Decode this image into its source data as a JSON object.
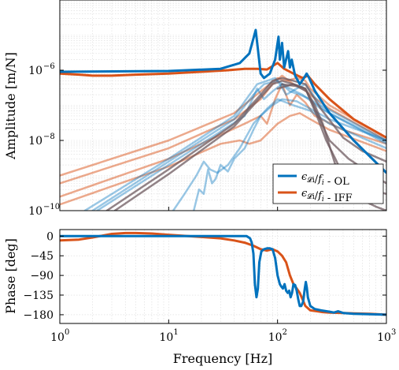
{
  "chart_data": [
    {
      "type": "line",
      "xscale": "log",
      "yscale": "log",
      "xlim": [
        1,
        1000
      ],
      "ylim": [
        1e-10,
        0.0001
      ],
      "ylabel": "Amplitude [m/N]",
      "xlabel": "",
      "yticks": [
        {
          "value": 1e-10,
          "label": "10"
        },
        {
          "value": 1e-08,
          "label": "10"
        },
        {
          "value": 1e-06,
          "label": "10"
        }
      ],
      "ytick_exponents": [
        "−10",
        "−8",
        "−6"
      ],
      "grid": true,
      "legend": {
        "placement": "bottom-right",
        "entries": [
          {
            "label": "ϵ",
            "sub": "𝓛i",
            "mid": "/",
            "f": "f",
            "fsub": "i",
            "suffix": " - OL",
            "color": "#0072BD"
          },
          {
            "label": "ϵ",
            "sub": "𝓛i",
            "mid": "/",
            "f": "f",
            "fsub": "i",
            "suffix": " - IFF",
            "color": "#D95319"
          }
        ]
      },
      "series": [
        {
          "color": "#0072BD",
          "width": 3,
          "opacity": 1,
          "x": [
            1,
            10,
            30,
            45,
            55,
            60,
            63,
            66,
            70,
            75,
            85,
            95,
            102,
            105,
            110,
            115,
            125,
            130,
            135,
            145,
            160,
            175,
            185,
            195,
            220,
            300,
            500,
            1000
          ],
          "y": [
            9e-07,
            9.5e-07,
            1.1e-06,
            1.6e-06,
            3e-06,
            8e-06,
            1.4e-05,
            4e-06,
            8e-07,
            6e-07,
            8e-07,
            2e-06,
            9e-06,
            2e-06,
            6e-06,
            1.2e-06,
            3.5e-06,
            1.2e-06,
            2e-06,
            7e-07,
            4e-07,
            6e-07,
            8e-07,
            6e-07,
            2.6e-07,
            6e-08,
            1e-08,
            1.2e-09
          ]
        },
        {
          "color": "#D95319",
          "width": 3,
          "opacity": 1,
          "x": [
            1,
            1.5,
            2,
            3,
            5,
            10,
            20,
            35,
            50,
            65,
            80,
            100,
            115,
            140,
            170,
            190,
            220,
            300,
            500,
            1000
          ],
          "y": [
            8e-07,
            7.5e-07,
            7e-07,
            7e-07,
            7.5e-07,
            8e-07,
            9e-07,
            1e-06,
            1.1e-06,
            1.1e-06,
            1.05e-06,
            1.6e-06,
            1.1e-06,
            8e-07,
            6e-07,
            7e-07,
            4e-07,
            1.5e-07,
            4e-08,
            1.2e-08
          ]
        },
        {
          "color": "#D95319",
          "width": 2.5,
          "opacity": 0.5,
          "x": [
            1,
            10,
            40,
            70,
            100,
            120,
            150,
            180,
            200,
            300,
            1000
          ],
          "y": [
            1e-09,
            1e-08,
            6e-08,
            2.5e-07,
            6e-07,
            5e-07,
            6e-07,
            5e-07,
            3e-07,
            1e-07,
            1.2e-08
          ]
        },
        {
          "color": "#D95319",
          "width": 2.5,
          "opacity": 0.5,
          "x": [
            1,
            10,
            40,
            70,
            90,
            110,
            140,
            170,
            200,
            300,
            1000
          ],
          "y": [
            6e-10,
            6e-09,
            4e-08,
            1.5e-07,
            4e-07,
            7e-07,
            4e-07,
            3e-07,
            2e-07,
            8e-08,
            1e-08
          ]
        },
        {
          "color": "#D95319",
          "width": 2.5,
          "opacity": 0.5,
          "x": [
            1,
            10,
            50,
            70,
            80,
            95,
            110,
            130,
            150,
            180,
            220,
            400,
            1000
          ],
          "y": [
            2.5e-10,
            3e-09,
            3e-08,
            5e-08,
            3e-08,
            1.5e-07,
            4e-07,
            1e-07,
            2e-07,
            1.2e-07,
            5e-08,
            2e-08,
            8e-09
          ]
        },
        {
          "color": "#D95319",
          "width": 2.5,
          "opacity": 0.5,
          "x": [
            1,
            10,
            30,
            45,
            55,
            70,
            100,
            130,
            160,
            200,
            300,
            1000
          ],
          "y": [
            1.5e-10,
            1.8e-09,
            8e-09,
            1e-08,
            8e-09,
            1e-08,
            3e-08,
            5e-08,
            6e-08,
            4e-08,
            2e-08,
            5e-09
          ]
        },
        {
          "color": "#0072BD",
          "width": 2.5,
          "opacity": 0.4,
          "x": [
            1.7,
            10,
            40,
            65,
            80,
            95,
            105,
            120,
            150,
            180,
            250,
            1000
          ],
          "y": [
            1e-10,
            3e-09,
            5e-08,
            4e-07,
            5e-07,
            6e-07,
            4e-07,
            2e-07,
            3e-07,
            4e-07,
            1e-07,
            1e-08
          ]
        },
        {
          "color": "#0072BD",
          "width": 2.5,
          "opacity": 0.4,
          "x": [
            2,
            10,
            40,
            60,
            75,
            100,
            130,
            170,
            250,
            1000
          ],
          "y": [
            1e-10,
            2.5e-09,
            4e-08,
            2e-07,
            4e-07,
            5e-07,
            3e-07,
            2e-07,
            8e-08,
            8e-09
          ]
        },
        {
          "color": "#0072BD",
          "width": 2.5,
          "opacity": 0.4,
          "x": [
            2.2,
            10,
            50,
            65,
            75,
            90,
            110,
            130,
            160,
            200,
            300,
            1000
          ],
          "y": [
            1e-10,
            2e-09,
            5e-08,
            3e-07,
            1.5e-07,
            2.5e-07,
            4e-07,
            2.5e-07,
            2e-07,
            1.5e-07,
            6e-08,
            9e-09
          ]
        },
        {
          "color": "#0072BD",
          "width": 2.5,
          "opacity": 0.4,
          "x": [
            17,
            19,
            21,
            23,
            25,
            27,
            30,
            35,
            40,
            50,
            60,
            70,
            90,
            110,
            150,
            200,
            300,
            1000
          ],
          "y": [
            1e-10,
            4e-10,
            3e-10,
            1.5e-09,
            6e-10,
            8e-10,
            2e-09,
            1.3e-09,
            3e-09,
            6e-09,
            2e-08,
            5e-08,
            1e-07,
            1.5e-07,
            1.3e-07,
            8e-08,
            4e-08,
            1e-08
          ]
        },
        {
          "color": "#0072BD",
          "width": 2.5,
          "opacity": 0.4,
          "x": [
            11,
            14,
            18,
            21,
            24,
            28,
            35,
            45,
            60,
            80,
            100,
            140,
            200,
            300,
            1000
          ],
          "y": [
            1e-10,
            3e-10,
            1e-09,
            2.5e-09,
            1.5e-09,
            1.2e-09,
            2e-09,
            6e-09,
            3e-08,
            8e-08,
            1.5e-07,
            1e-07,
            7e-08,
            3e-08,
            6e-09
          ]
        },
        {
          "color": "#6E5A5F",
          "width": 2.5,
          "opacity": 0.75,
          "x": [
            2.7,
            10,
            40,
            70,
            90,
            110,
            140,
            180,
            250,
            400,
            600,
            1000
          ],
          "y": [
            1e-10,
            1.5e-09,
            3e-08,
            2e-07,
            5e-07,
            6e-07,
            5e-07,
            4e-07,
            8e-08,
            1.2e-08,
            5e-09,
            2.5e-09
          ]
        },
        {
          "color": "#6E5A5F",
          "width": 2.5,
          "opacity": 0.75,
          "x": [
            3.2,
            10,
            40,
            70,
            90,
            110,
            140,
            180,
            230,
            300,
            450,
            700,
            1000
          ],
          "y": [
            1e-10,
            1.1e-09,
            2.5e-08,
            1.7e-07,
            4e-07,
            5e-07,
            4e-07,
            3e-07,
            6e-08,
            1e-08,
            3e-09,
            1.2e-09,
            6e-10
          ]
        },
        {
          "color": "#6E5A5F",
          "width": 2.5,
          "opacity": 0.75,
          "x": [
            100,
            140,
            180,
            220,
            260,
            300,
            340,
            380,
            420,
            500,
            700,
            1000
          ],
          "y": [
            3e-07,
            4e-07,
            3e-07,
            1e-07,
            3e-08,
            7e-09,
            2e-09,
            7e-10,
            4e-10,
            4.5e-10,
            4e-10,
            3e-10
          ]
        },
        {
          "color": "#6E5A5F",
          "width": 2.5,
          "opacity": 0.75,
          "x": [
            110,
            150,
            185,
            230,
            280,
            340,
            400,
            480,
            600,
            800,
            1000
          ],
          "y": [
            4e-07,
            3.5e-07,
            2.5e-07,
            5e-08,
            1e-08,
            3e-09,
            1e-09,
            4e-10,
            2e-10,
            1.3e-10,
            1e-10
          ]
        }
      ]
    },
    {
      "type": "line",
      "xscale": "log",
      "xlim": [
        1,
        1000
      ],
      "ylim": [
        -200,
        15
      ],
      "ylabel": "Phase [deg]",
      "xlabel": "Frequency [Hz]",
      "yticks": [
        0,
        -45,
        -90,
        -135,
        -180
      ],
      "ytick_labels": [
        "0",
        "−45",
        "−90",
        "−135",
        "−180"
      ],
      "xticks": [
        1,
        10,
        100,
        1000
      ],
      "xtick_labels": [
        "10",
        "10",
        "10",
        "10"
      ],
      "xtick_exponents": [
        "0",
        "1",
        "2",
        "3"
      ],
      "grid": true,
      "series": [
        {
          "color": "#0072BD",
          "width": 3,
          "opacity": 1,
          "x": [
            1,
            10,
            30,
            45,
            52,
            56,
            58,
            60,
            62,
            64,
            66,
            68,
            71,
            75,
            80,
            85,
            90,
            95,
            100,
            105,
            108,
            112,
            116,
            120,
            124,
            128,
            132,
            136,
            140,
            145,
            150,
            155,
            160,
            165,
            172,
            178,
            182,
            186,
            190,
            200,
            220,
            250,
            300,
            330,
            360,
            400,
            500,
            1000
          ],
          "y": [
            0,
            0,
            0,
            0,
            0,
            -5,
            -15,
            -40,
            -110,
            -140,
            -120,
            -60,
            -35,
            -30,
            -28,
            -28,
            -30,
            -50,
            -90,
            -110,
            -115,
            -120,
            -110,
            -125,
            -130,
            -125,
            -140,
            -130,
            -110,
            -112,
            -125,
            -145,
            -160,
            -160,
            -150,
            -120,
            -105,
            -118,
            -140,
            -160,
            -167,
            -170,
            -173,
            -175,
            -172,
            -176,
            -178,
            -180
          ]
        },
        {
          "color": "#D95319",
          "width": 3,
          "opacity": 1,
          "x": [
            1,
            1.5,
            2,
            3,
            4,
            5,
            7,
            10,
            15,
            20,
            30,
            40,
            50,
            60,
            70,
            80,
            90,
            100,
            110,
            120,
            130,
            140,
            150,
            160,
            170,
            180,
            190,
            200,
            230,
            260,
            300,
            400,
            500,
            700,
            1000
          ],
          "y": [
            -10,
            -8,
            -3,
            5,
            7,
            7,
            6,
            3,
            0,
            -2,
            -5,
            -10,
            -15,
            -22,
            -30,
            -33,
            -30,
            -35,
            -45,
            -60,
            -90,
            -110,
            -120,
            -130,
            -145,
            -160,
            -165,
            -170,
            -172,
            -174,
            -175,
            -176,
            -177,
            -178,
            -180
          ]
        }
      ]
    }
  ]
}
